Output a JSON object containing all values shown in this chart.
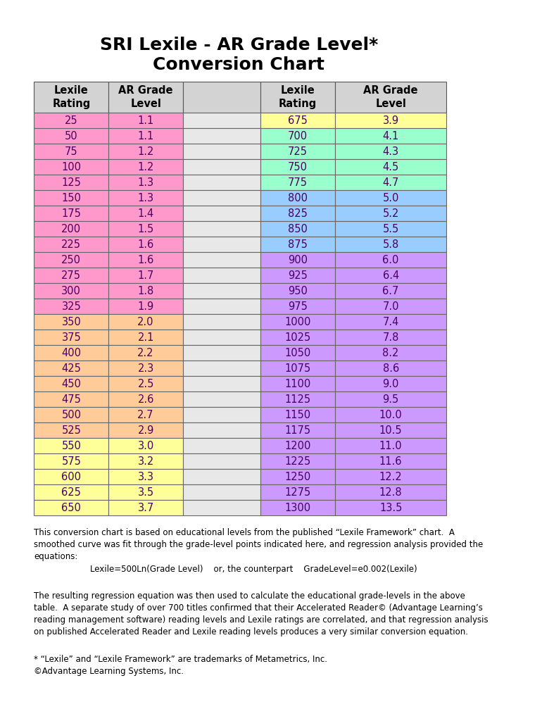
{
  "title_line1": "SRI Lexile - AR Grade Level*",
  "title_line2": "Conversion Chart",
  "left_data": [
    [
      "25",
      "1.1"
    ],
    [
      "50",
      "1.1"
    ],
    [
      "75",
      "1.2"
    ],
    [
      "100",
      "1.2"
    ],
    [
      "125",
      "1.3"
    ],
    [
      "150",
      "1.3"
    ],
    [
      "175",
      "1.4"
    ],
    [
      "200",
      "1.5"
    ],
    [
      "225",
      "1.6"
    ],
    [
      "250",
      "1.6"
    ],
    [
      "275",
      "1.7"
    ],
    [
      "300",
      "1.8"
    ],
    [
      "325",
      "1.9"
    ],
    [
      "350",
      "2.0"
    ],
    [
      "375",
      "2.1"
    ],
    [
      "400",
      "2.2"
    ],
    [
      "425",
      "2.3"
    ],
    [
      "450",
      "2.5"
    ],
    [
      "475",
      "2.6"
    ],
    [
      "500",
      "2.7"
    ],
    [
      "525",
      "2.9"
    ],
    [
      "550",
      "3.0"
    ],
    [
      "575",
      "3.2"
    ],
    [
      "600",
      "3.3"
    ],
    [
      "625",
      "3.5"
    ],
    [
      "650",
      "3.7"
    ]
  ],
  "right_data": [
    [
      "675",
      "3.9"
    ],
    [
      "700",
      "4.1"
    ],
    [
      "725",
      "4.3"
    ],
    [
      "750",
      "4.5"
    ],
    [
      "775",
      "4.7"
    ],
    [
      "800",
      "5.0"
    ],
    [
      "825",
      "5.2"
    ],
    [
      "850",
      "5.5"
    ],
    [
      "875",
      "5.8"
    ],
    [
      "900",
      "6.0"
    ],
    [
      "925",
      "6.4"
    ],
    [
      "950",
      "6.7"
    ],
    [
      "975",
      "7.0"
    ],
    [
      "1000",
      "7.4"
    ],
    [
      "1025",
      "7.8"
    ],
    [
      "1050",
      "8.2"
    ],
    [
      "1075",
      "8.6"
    ],
    [
      "1100",
      "9.0"
    ],
    [
      "1125",
      "9.5"
    ],
    [
      "1150",
      "10.0"
    ],
    [
      "1175",
      "10.5"
    ],
    [
      "1200",
      "11.0"
    ],
    [
      "1225",
      "11.6"
    ],
    [
      "1250",
      "12.2"
    ],
    [
      "1275",
      "12.8"
    ],
    [
      "1300",
      "13.5"
    ]
  ],
  "left_row_colors": [
    "#FF99CC",
    "#FF99CC",
    "#FF99CC",
    "#FF99CC",
    "#FF99CC",
    "#FF99CC",
    "#FF99CC",
    "#FF99CC",
    "#FF99CC",
    "#FF99CC",
    "#FF99CC",
    "#FF99CC",
    "#FF99CC",
    "#FFCC99",
    "#FFCC99",
    "#FFCC99",
    "#FFCC99",
    "#FFCC99",
    "#FFCC99",
    "#FFCC99",
    "#FFCC99",
    "#FFFF99",
    "#FFFF99",
    "#FFFF99",
    "#FFFF99",
    "#FFFF99"
  ],
  "right_row_colors": [
    "#FFFF99",
    "#99FFCC",
    "#99FFCC",
    "#99FFCC",
    "#99FFCC",
    "#99CCFF",
    "#99CCFF",
    "#99CCFF",
    "#99CCFF",
    "#CC99FF",
    "#CC99FF",
    "#CC99FF",
    "#CC99FF",
    "#CC99FF",
    "#CC99FF",
    "#CC99FF",
    "#CC99FF",
    "#CC99FF",
    "#CC99FF",
    "#CC99FF",
    "#CC99FF",
    "#CC99FF",
    "#CC99FF",
    "#CC99FF",
    "#CC99FF",
    "#CC99FF"
  ],
  "header_color": "#D3D3D3",
  "mid_color": "#E8E8E8",
  "text_color": "#5B2C6F",
  "border_color": "#555555",
  "footnote1": "This conversion chart is based on educational levels from the published “Lexile Framework” chart.  A\nsmoothed curve was fit through the grade-level points indicated here, and regression analysis provided the\nequations:",
  "footnote2": "Lexile=500Ln(Grade Level)    or, the counterpart    GradeLevel=e0.002(Lexile)",
  "footnote3": "The resulting regression equation was then used to calculate the educational grade-levels in the above\ntable.  A separate study of over 700 titles confirmed that their Accelerated Reader© (Advantage Learning’s\nreading management software) reading levels and Lexile ratings are correlated, and that regression analysis\non published Accelerated Reader and Lexile reading levels produces a very similar conversion equation.",
  "footnote4": "* “Lexile” and “Lexile Framework” are trademarks of Metametrics, Inc.\n©Advantage Learning Systems, Inc."
}
